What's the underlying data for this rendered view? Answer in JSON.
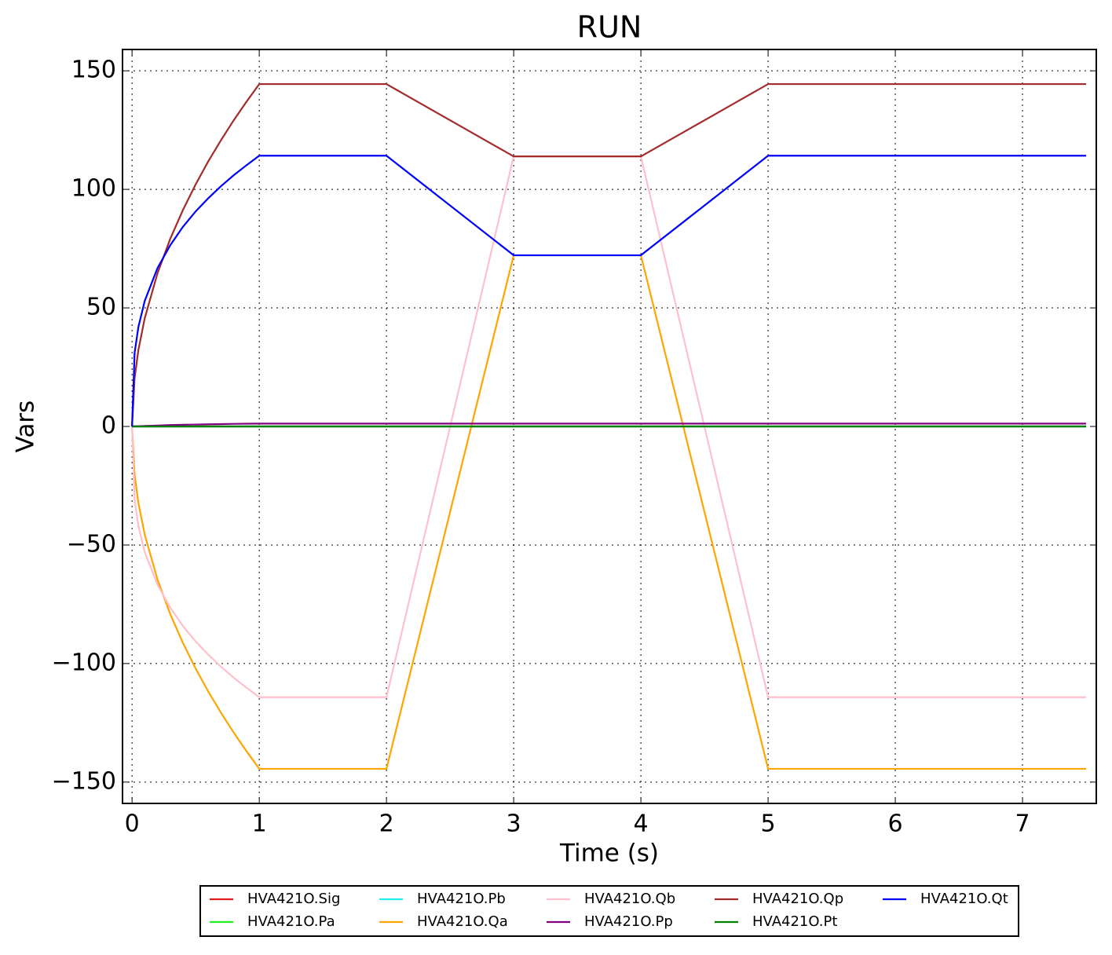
{
  "chart_data": {
    "type": "line",
    "title": "RUN",
    "x_label": "Time (s)",
    "y_label": "Vars",
    "x": [
      0,
      0.02,
      0.05,
      0.1,
      0.2,
      0.3,
      0.4,
      0.5,
      0.6,
      0.7,
      0.8,
      0.9,
      1,
      2,
      3,
      4,
      5,
      7.5
    ],
    "series": [
      {
        "name": "HVA421O.Sig",
        "color": "#e41a1c",
        "values": [
          0,
          0,
          0,
          0,
          0,
          0,
          0,
          0,
          0,
          0,
          0,
          0,
          0,
          0,
          0,
          0,
          0,
          0
        ]
      },
      {
        "name": "HVA421O.Pa",
        "color": "#22ee22",
        "values": [
          0,
          0,
          0,
          0,
          0,
          0,
          0,
          0,
          0,
          0,
          0,
          0,
          0,
          0,
          0,
          0,
          0,
          0
        ]
      },
      {
        "name": "HVA421O.Pb",
        "color": "#22eeee",
        "values": [
          0,
          0,
          0,
          0,
          0,
          0,
          0,
          0,
          0,
          0,
          0,
          0,
          0,
          0,
          0,
          0,
          0,
          0
        ]
      },
      {
        "name": "HVA421O.Qa",
        "color": "#ffa500",
        "values": [
          0,
          -20.4,
          -32.3,
          -45.7,
          -64.6,
          -79.1,
          -91.3,
          -102.1,
          -111.9,
          -120.8,
          -129.2,
          -137.0,
          -144.4,
          -144.4,
          72.2,
          72.2,
          -144.4,
          -144.4
        ]
      },
      {
        "name": "HVA421O.Qb",
        "color": "#ffc0cb",
        "values": [
          0,
          -31.0,
          -42.0,
          -53.0,
          -66.8,
          -76.4,
          -84.2,
          -90.7,
          -96.3,
          -101.4,
          -106.0,
          -110.2,
          -114.2,
          -114.2,
          113.9,
          113.9,
          -114.2,
          -114.2
        ]
      },
      {
        "name": "HVA421O.Pp",
        "color": "#800080",
        "values": [
          0,
          0.05,
          0.1,
          0.2,
          0.4,
          0.6,
          0.7,
          0.8,
          0.9,
          1.0,
          1.1,
          1.15,
          1.2,
          1.2,
          1.2,
          1.2,
          1.2,
          1.2
        ]
      },
      {
        "name": "HVA421O.Qp",
        "color": "#a52a2a",
        "values": [
          0,
          20.4,
          32.3,
          45.7,
          64.6,
          79.1,
          91.3,
          102.1,
          111.9,
          120.8,
          129.2,
          137.0,
          144.4,
          144.4,
          113.9,
          113.9,
          144.4,
          144.4
        ]
      },
      {
        "name": "HVA421O.Pt",
        "color": "#008000",
        "values": [
          0,
          0,
          0,
          0,
          0,
          0,
          0,
          0,
          0,
          0,
          0,
          0,
          0,
          0,
          0,
          0,
          0,
          0
        ]
      },
      {
        "name": "HVA421O.Qt",
        "color": "#0000ff",
        "values": [
          0,
          31.0,
          42.0,
          53.0,
          66.8,
          76.4,
          84.2,
          90.7,
          96.3,
          101.4,
          106.0,
          110.2,
          114.2,
          114.2,
          72.2,
          72.2,
          114.2,
          114.2
        ]
      }
    ],
    "xlim": [
      -0.075,
      7.58
    ],
    "ylim": [
      -159,
      159
    ],
    "xticks": [
      0,
      1,
      2,
      3,
      4,
      5,
      6,
      7
    ],
    "yticks": [
      {
        "value": -150,
        "label": "−150"
      },
      {
        "value": -100,
        "label": "−100"
      },
      {
        "value": -50,
        "label": "−50"
      },
      0,
      50,
      100,
      150
    ],
    "grid": true,
    "legend_position": "bottom",
    "legend_columns": 5
  }
}
